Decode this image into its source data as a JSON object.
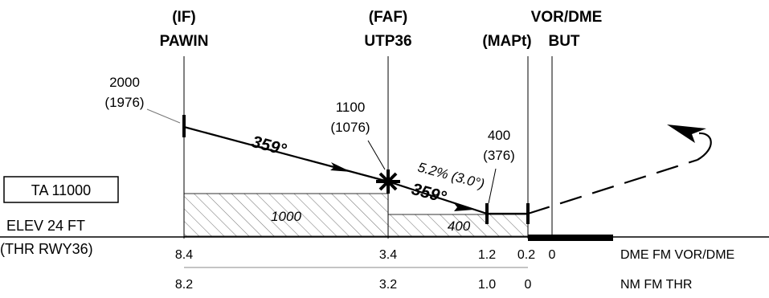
{
  "fixes": {
    "if": {
      "role": "(IF)",
      "name": "PAWIN"
    },
    "faf": {
      "role": "(FAF)",
      "name": "UTP36"
    },
    "mapt": {
      "role": "(MAPt)"
    },
    "vor": {
      "role": "VOR/DME",
      "name": "BUT"
    }
  },
  "altitudes": {
    "if": {
      "alt": "2000",
      "height": "(1976)"
    },
    "faf": {
      "alt": "1100",
      "height": "(1076)"
    },
    "mapt": {
      "alt": "400",
      "height": "(376)"
    }
  },
  "path": {
    "course_1": "359°",
    "course_2": "359°",
    "gradient": "5.2% (3.0°)"
  },
  "obstacle_clearance": {
    "initial": "1000",
    "final": "400"
  },
  "aerodrome": {
    "transition_altitude": "TA 11000",
    "elevation": "ELEV 24 FT",
    "threshold": "(THR RWY36)"
  },
  "scales": {
    "dme_label": "DME FM VOR/DME",
    "thr_label": "NM FM THR",
    "dme_values": [
      "8.4",
      "3.4",
      "1.2",
      "0.2",
      "0"
    ],
    "thr_values": [
      "8.2",
      "3.2",
      "1.0",
      "0"
    ]
  },
  "colors": {
    "ink": "#000000",
    "hatch": "#777777",
    "background": "#ffffff"
  }
}
